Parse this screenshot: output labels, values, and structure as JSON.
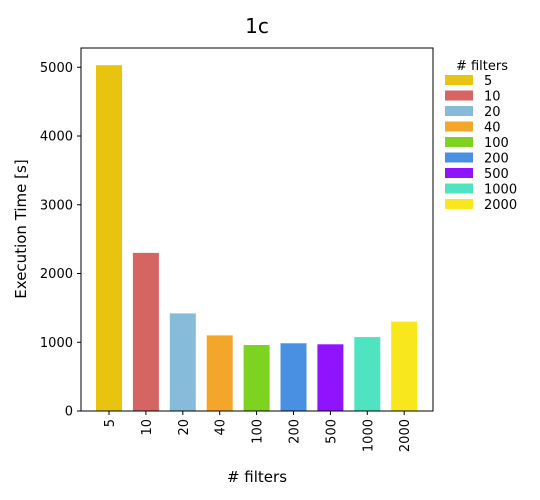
{
  "chart_data": {
    "type": "bar",
    "title": "1c",
    "xlabel": "# filters",
    "ylabel": "Execution Time [s]",
    "categories": [
      "5",
      "10",
      "20",
      "40",
      "100",
      "200",
      "500",
      "1000",
      "2000"
    ],
    "values": [
      5030,
      2300,
      1420,
      1100,
      960,
      985,
      970,
      1075,
      1300
    ],
    "colors": [
      "#e8c30f",
      "#d66463",
      "#86bcd9",
      "#f4a62a",
      "#7ed320",
      "#4a90e2",
      "#9013fe",
      "#50e3c2",
      "#f8e71c"
    ],
    "yticks": [
      0,
      1000,
      2000,
      3000,
      4000,
      5000
    ],
    "ylim": [
      0,
      5280
    ],
    "grid": false,
    "legend": {
      "title": "# filters",
      "placement": "outside-right",
      "entries": [
        "5",
        "10",
        "20",
        "40",
        "100",
        "200",
        "500",
        "1000",
        "2000"
      ]
    }
  }
}
